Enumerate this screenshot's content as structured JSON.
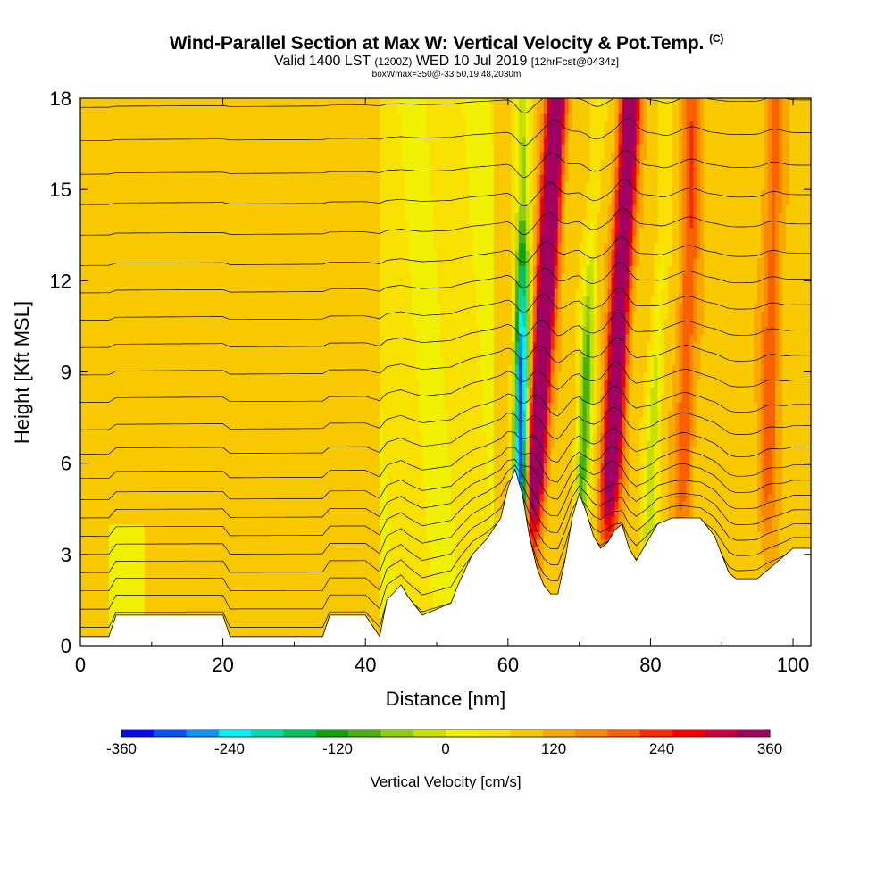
{
  "chart_data": {
    "type": "heatmap",
    "title": "Wind-Parallel Section at Max W: Vertical Velocity & Pot.Temp.",
    "copyright": "(C)",
    "subtitle": {
      "valid": "Valid 1400 LST",
      "utc": "(1200Z)",
      "date": "WED 10 Jul 2019",
      "forecast": "[12hrFcst@0434z]"
    },
    "meta": "boxWmax=350@-33.50,19.48,2030m",
    "xlabel": "Distance [nm]",
    "ylabel": "Height [Kft MSL]",
    "xlim": [
      0,
      102.5
    ],
    "ylim": [
      0,
      18
    ],
    "x_ticks": [
      "0",
      "20",
      "40",
      "60",
      "80",
      "100"
    ],
    "y_ticks": [
      "0",
      "3",
      "6",
      "9",
      "12",
      "15",
      "18"
    ],
    "colorbar": {
      "label": "Vertical Velocity [cm/s]",
      "tick_labels": [
        "-360",
        "-240",
        "-120",
        "0",
        "120",
        "240",
        "360"
      ],
      "levels": [
        -360,
        -330,
        -300,
        -270,
        -240,
        -210,
        -180,
        -150,
        -120,
        -90,
        -60,
        -30,
        0,
        30,
        60,
        90,
        120,
        150,
        180,
        210,
        240,
        270,
        300,
        330,
        360
      ],
      "colors": [
        "#0a0aee",
        "#0a50ee",
        "#0a96f0",
        "#00f0ff",
        "#00d8b0",
        "#00c060",
        "#10a010",
        "#48b010",
        "#90cc10",
        "#c8e000",
        "#f0f000",
        "#f8e000",
        "#f8c800",
        "#f8a800",
        "#f88800",
        "#f86000",
        "#f82800",
        "#f00000",
        "#c80040",
        "#a00060"
      ]
    },
    "terrain_kft": [
      [
        0,
        0.3
      ],
      [
        4,
        0.3
      ],
      [
        5,
        1.0
      ],
      [
        20,
        1.0
      ],
      [
        21,
        0.3
      ],
      [
        34,
        0.3
      ],
      [
        35,
        1.0
      ],
      [
        40,
        1.0
      ],
      [
        42,
        0.3
      ],
      [
        43,
        1.5
      ],
      [
        45,
        2.0
      ],
      [
        46,
        1.6
      ],
      [
        47,
        1.3
      ],
      [
        48,
        1.0
      ],
      [
        50,
        1.2
      ],
      [
        52,
        1.4
      ],
      [
        53,
        2.0
      ],
      [
        55,
        3.0
      ],
      [
        57,
        3.5
      ],
      [
        59,
        4.2
      ],
      [
        60,
        5.2
      ],
      [
        61,
        5.8
      ],
      [
        62,
        5.0
      ],
      [
        63,
        3.6
      ],
      [
        64,
        2.6
      ],
      [
        65,
        2.0
      ],
      [
        66,
        1.7
      ],
      [
        67,
        1.7
      ],
      [
        68,
        2.8
      ],
      [
        69,
        4.2
      ],
      [
        70,
        5.0
      ],
      [
        71,
        4.4
      ],
      [
        72,
        3.6
      ],
      [
        73,
        3.2
      ],
      [
        74,
        3.4
      ],
      [
        75,
        3.8
      ],
      [
        76,
        4.0
      ],
      [
        77,
        3.2
      ],
      [
        78,
        2.8
      ],
      [
        79,
        3.2
      ],
      [
        80,
        3.6
      ],
      [
        81,
        4.0
      ],
      [
        83,
        4.2
      ],
      [
        87,
        4.2
      ],
      [
        89,
        3.6
      ],
      [
        90,
        3.0
      ],
      [
        91,
        2.4
      ],
      [
        92,
        2.2
      ],
      [
        95,
        2.2
      ],
      [
        96,
        2.4
      ],
      [
        97,
        2.6
      ],
      [
        99,
        3.0
      ],
      [
        100,
        3.2
      ],
      [
        102.5,
        3.2
      ]
    ],
    "updraft_bands": [
      {
        "x_base": 62.5,
        "x_top": 66.8,
        "w_max": 330
      },
      {
        "x_base": 73.2,
        "x_top": 77.2,
        "w_max": 300
      },
      {
        "x_base": 84.0,
        "x_top": 86.0,
        "w_max": 100
      },
      {
        "x_base": 96.0,
        "x_top": 97.5,
        "w_max": 90
      }
    ],
    "downdraft_bands": [
      {
        "x_base": 61.5,
        "x_top": 62.2,
        "w_min": -350
      },
      {
        "x_base": 69.5,
        "x_top": 72.5,
        "w_min": -150
      },
      {
        "x_base": 79.0,
        "x_top": 82.5,
        "w_min": -90
      }
    ],
    "theta_contour_heights_kft": [
      0.6,
      1.2,
      1.8,
      2.4,
      3.0,
      3.6,
      4.2,
      4.8,
      5.5,
      6.3,
      7.1,
      8.0,
      8.9,
      9.8,
      10.7,
      11.6,
      12.5,
      13.5,
      14.5,
      15.5,
      16.6,
      17.7
    ]
  }
}
